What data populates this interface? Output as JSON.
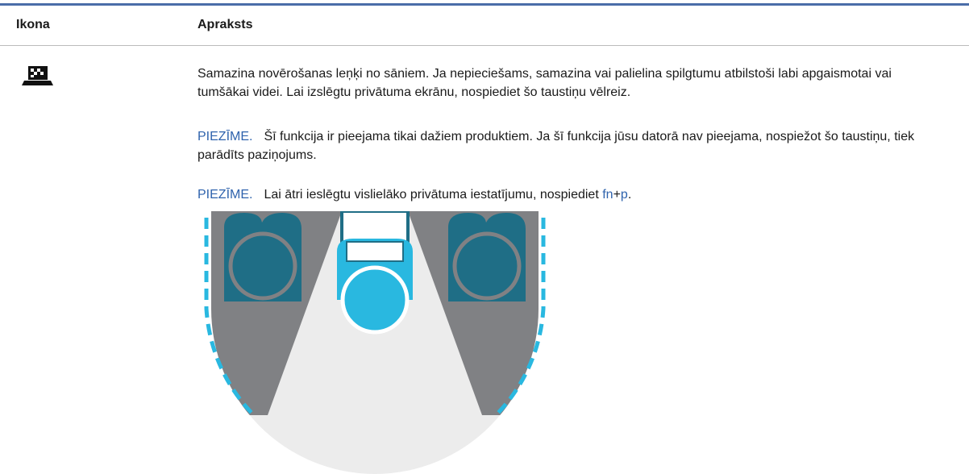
{
  "table": {
    "header": [
      "Ikona",
      "Apraksts"
    ],
    "rows": [
      {
        "description": "Samazina novērošanas leņķi no sāniem. Ja nepieciešams, samazina vai palielina spilgtumu atbilstoši labi apgaismotai vai tumšākai videi. Lai izslēgtu privātuma ekrānu, nospiediet šo taustiņu vēlreiz.",
        "notes": [
          {
            "label": "PIEZĪME.",
            "text": "Šī funkcija ir pieejama tikai dažiem produktiem. Ja šī funkcija jūsu datorā nav pieejama, nospiežot šo taustiņu, tiek parādīts paziņojums."
          },
          {
            "label": "PIEZĪME.",
            "text": "Lai ātri ieslēgtu vislielāko privātuma iestatījumu, nospiediet ",
            "key1": "fn",
            "plus": "+",
            "key2": "p",
            "end": "."
          }
        ]
      }
    ]
  }
}
